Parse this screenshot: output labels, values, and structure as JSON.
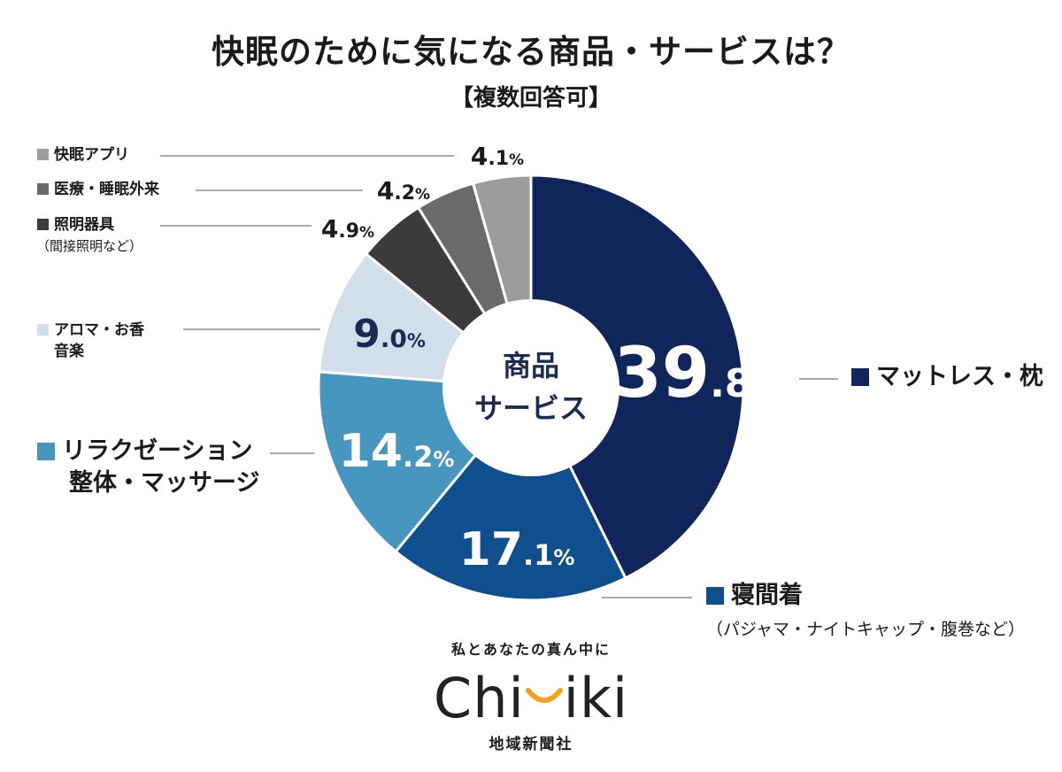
{
  "chart_data": {
    "type": "pie",
    "title": "快眠のために気になる商品・サービスは？",
    "subtitle": "【複数回答可】",
    "center_label": [
      "商品",
      "サービス"
    ],
    "unit": "%",
    "slices": [
      {
        "label": "マットレス・枕",
        "value": 39.8,
        "color": "#10265a",
        "legend": "big",
        "label_color": "#ffffff"
      },
      {
        "label": "寝間着",
        "note": "（パジャマ・ナイトキャップ・腹巻など）",
        "value": 17.1,
        "color": "#0f4f8e",
        "legend": "big",
        "label_color": "#ffffff"
      },
      {
        "label": "リラクゼーション整体・マッサージ",
        "value": 14.2,
        "color": "#4796bf",
        "legend": "big",
        "label_color": "#ffffff"
      },
      {
        "label": "アロマ・お香音楽",
        "value": 9.0,
        "color": "#d2dee9",
        "legend": "small",
        "label_color": "#1c2b55"
      },
      {
        "label": "照明器具",
        "note": "（間接照明など）",
        "value": 4.9,
        "color": "#3b3b3d",
        "legend": "small",
        "label_color": "#1a1a1a"
      },
      {
        "label": "医療・睡眠外来",
        "value": 4.2,
        "color": "#6a6a6d",
        "legend": "small",
        "label_color": "#1a1a1a"
      },
      {
        "label": "快眠アプリ",
        "value": 4.1,
        "color": "#9c9c9f",
        "legend": "small",
        "label_color": "#1a1a1a"
      }
    ]
  },
  "legend_text": {
    "mattress": "マットレス・枕",
    "sleepwear": "寝間着",
    "sleepwear_note": "（パジャマ・ナイトキャップ・腹巻など）",
    "relax_1": "リラクゼーション",
    "relax_2": "整体・マッサージ",
    "aroma_1": "アロマ・お香",
    "aroma_2": "音楽",
    "lighting": "照明器具",
    "lighting_note": "（間接照明など）",
    "medical": "医療・睡眠外来",
    "app": "快眠アプリ"
  },
  "brand": {
    "tagline": "私とあなたの真ん中に",
    "logo_left": "Ch",
    "logo_i": "i",
    "logo_right": "iki",
    "company": "地域新聞社",
    "accent_color": "#f0a31e"
  }
}
